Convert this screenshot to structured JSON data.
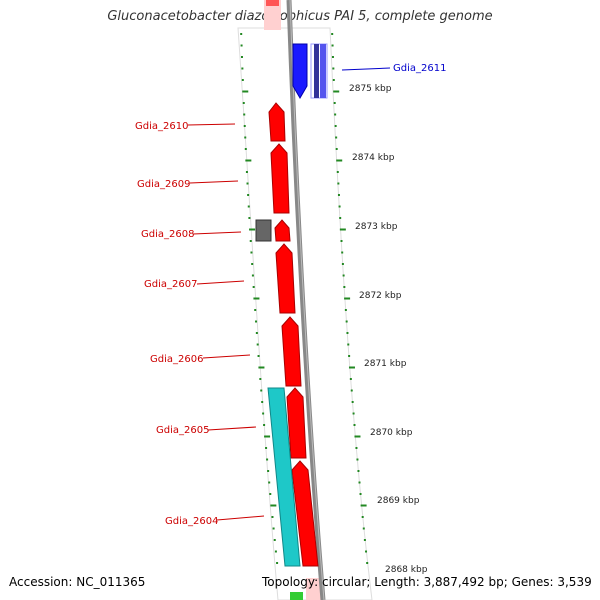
{
  "title": "Gluconacetobacter diazotrophicus PAI 5, complete genome",
  "footer": {
    "accession_label": "Accession:",
    "accession": "NC_011365",
    "topology_label": "Topology:",
    "topology": "circular",
    "length_label": "Length:",
    "length": "3,887,492 bp",
    "genes_label": "Genes:",
    "genes": "3,539"
  },
  "colors": {
    "gene_forward": "#ff0000",
    "gene_reverse": "#1a1aff",
    "gene_other": "#1ec8c8",
    "gene_gray": "#777777",
    "backbone": "#999999",
    "ticks": "#228822",
    "label_forward": "#cc0000",
    "label_reverse": "#0000cc"
  },
  "genes_left": [
    {
      "name": "Gdia_2610"
    },
    {
      "name": "Gdia_2609"
    },
    {
      "name": "Gdia_2608"
    },
    {
      "name": "Gdia_2607"
    },
    {
      "name": "Gdia_2606"
    },
    {
      "name": "Gdia_2605"
    },
    {
      "name": "Gdia_2604"
    }
  ],
  "genes_right": [
    {
      "name": "Gdia_2611"
    }
  ],
  "scale_ticks": [
    {
      "label": "2875 kbp"
    },
    {
      "label": "2874 kbp"
    },
    {
      "label": "2873 kbp"
    },
    {
      "label": "2872 kbp"
    },
    {
      "label": "2871 kbp"
    },
    {
      "label": "2870 kbp"
    },
    {
      "label": "2869 kbp"
    },
    {
      "label": "2868 kbp"
    }
  ]
}
